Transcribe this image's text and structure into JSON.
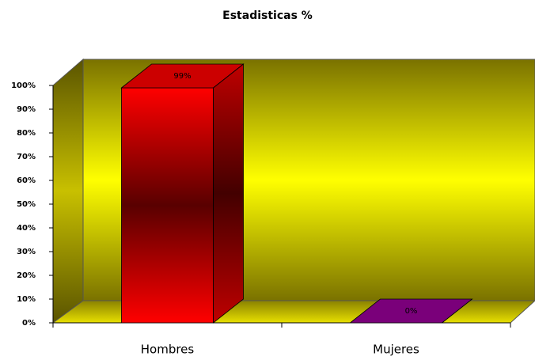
{
  "chart_data": {
    "type": "bar3d",
    "title": "Estadisticas %",
    "categories": [
      "Hombres",
      "Mujeres"
    ],
    "values": [
      99,
      0
    ],
    "value_labels": [
      "99%",
      "0%"
    ],
    "colors": [
      "#ff0000",
      "#990099"
    ],
    "ylim": [
      0,
      100
    ],
    "yticks": [
      {
        "value": 0,
        "label": "0%"
      },
      {
        "value": 10,
        "label": "10%"
      },
      {
        "value": 20,
        "label": "20%"
      },
      {
        "value": 30,
        "label": "30%"
      },
      {
        "value": 40,
        "label": "40%"
      },
      {
        "value": 50,
        "label": "50%"
      },
      {
        "value": 60,
        "label": "60%"
      },
      {
        "value": 70,
        "label": "70%"
      },
      {
        "value": 80,
        "label": "80%"
      },
      {
        "value": 90,
        "label": "90%"
      },
      {
        "value": 100,
        "label": "100%"
      }
    ],
    "grid": false
  }
}
